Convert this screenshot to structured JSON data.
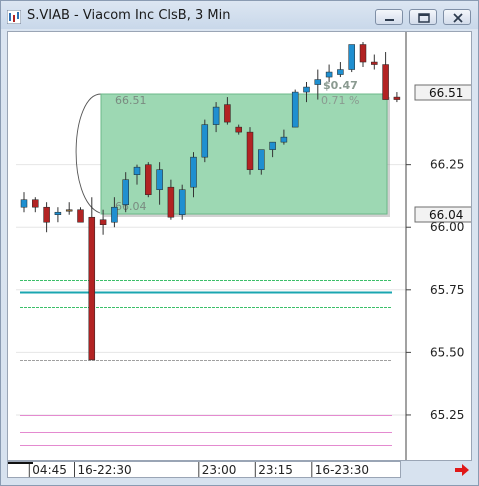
{
  "window": {
    "title": "S.VIAB - Viacom Inc ClsB, 3 Min",
    "controls": [
      "minimize",
      "restore",
      "close"
    ]
  },
  "overlay": {
    "upper_price": "66.51",
    "lower_price": "66.04",
    "change": "$0.47",
    "change_pct": "0.71 %",
    "fill_color": "#9dd8b3"
  },
  "price_badges": {
    "upper": "66.51",
    "lower": "66.04"
  },
  "chart_data": {
    "type": "candlestick",
    "title": "S.VIAB - Viacom Inc ClsB, 3 Min",
    "y_ticks": [
      "66.25",
      "66.00",
      "65.75",
      "65.50",
      "65.25"
    ],
    "y_tick_values": [
      66.25,
      66.0,
      65.75,
      65.5,
      65.25
    ],
    "ylim": [
      65.07,
      66.78
    ],
    "x_ticks": [
      "04:45",
      "16-22:30",
      "23:00",
      "23:15",
      "16-23:30"
    ],
    "x_tick_candle_index": [
      1,
      5,
      16,
      21,
      26
    ],
    "candles": [
      {
        "o": 66.08,
        "h": 66.14,
        "l": 66.06,
        "c": 66.11
      },
      {
        "o": 66.11,
        "h": 66.12,
        "l": 66.06,
        "c": 66.08
      },
      {
        "o": 66.08,
        "h": 66.1,
        "l": 65.98,
        "c": 66.02
      },
      {
        "o": 66.05,
        "h": 66.08,
        "l": 66.02,
        "c": 66.06
      },
      {
        "o": 66.07,
        "h": 66.1,
        "l": 66.05,
        "c": 66.07
      },
      {
        "o": 66.07,
        "h": 66.08,
        "l": 66.02,
        "c": 66.02
      },
      {
        "o": 66.04,
        "h": 66.12,
        "l": 65.47,
        "c": 65.47
      },
      {
        "o": 66.03,
        "h": 66.07,
        "l": 65.97,
        "c": 66.01
      },
      {
        "o": 66.02,
        "h": 66.12,
        "l": 66.0,
        "c": 66.08
      },
      {
        "o": 66.09,
        "h": 66.22,
        "l": 66.06,
        "c": 66.19
      },
      {
        "o": 66.21,
        "h": 66.25,
        "l": 66.17,
        "c": 66.24
      },
      {
        "o": 66.25,
        "h": 66.26,
        "l": 66.12,
        "c": 66.13
      },
      {
        "o": 66.15,
        "h": 66.26,
        "l": 66.09,
        "c": 66.23
      },
      {
        "o": 66.16,
        "h": 66.19,
        "l": 66.03,
        "c": 66.04
      },
      {
        "o": 66.05,
        "h": 66.17,
        "l": 66.03,
        "c": 66.15
      },
      {
        "o": 66.16,
        "h": 66.3,
        "l": 66.12,
        "c": 66.28
      },
      {
        "o": 66.28,
        "h": 66.43,
        "l": 66.26,
        "c": 66.41
      },
      {
        "o": 66.41,
        "h": 66.5,
        "l": 66.38,
        "c": 66.48
      },
      {
        "o": 66.49,
        "h": 66.52,
        "l": 66.41,
        "c": 66.42
      },
      {
        "o": 66.4,
        "h": 66.41,
        "l": 66.37,
        "c": 66.38
      },
      {
        "o": 66.38,
        "h": 66.4,
        "l": 66.21,
        "c": 66.23
      },
      {
        "o": 66.23,
        "h": 66.3,
        "l": 66.21,
        "c": 66.31
      },
      {
        "o": 66.31,
        "h": 66.34,
        "l": 66.28,
        "c": 66.34
      },
      {
        "o": 66.34,
        "h": 66.39,
        "l": 66.33,
        "c": 66.36
      },
      {
        "o": 66.4,
        "h": 66.55,
        "l": 66.4,
        "c": 66.54
      },
      {
        "o": 66.54,
        "h": 66.58,
        "l": 66.5,
        "c": 66.56
      },
      {
        "o": 66.57,
        "h": 66.63,
        "l": 66.51,
        "c": 66.59
      },
      {
        "o": 66.6,
        "h": 66.65,
        "l": 66.58,
        "c": 66.62
      },
      {
        "o": 66.61,
        "h": 66.66,
        "l": 66.6,
        "c": 66.63
      },
      {
        "o": 66.63,
        "h": 66.73,
        "l": 66.62,
        "c": 66.73
      },
      {
        "o": 66.73,
        "h": 66.74,
        "l": 66.64,
        "c": 66.66
      },
      {
        "o": 66.66,
        "h": 66.69,
        "l": 66.63,
        "c": 66.65
      },
      {
        "o": 66.65,
        "h": 66.7,
        "l": 66.51,
        "c": 66.51
      },
      {
        "o": 66.52,
        "h": 66.54,
        "l": 66.5,
        "c": 66.51
      }
    ],
    "reference_lines": [
      {
        "value": 65.79,
        "color": "#3cbf6a",
        "style": "dashed"
      },
      {
        "value": 65.74,
        "color": "#1aa6b0",
        "style": "solid"
      },
      {
        "value": 65.68,
        "color": "#3cbf6a",
        "style": "dashed"
      },
      {
        "value": 65.47,
        "color": "#a0a0a0",
        "style": "dashed"
      },
      {
        "value": 65.25,
        "color": "#e48ad0",
        "style": "solid"
      },
      {
        "value": 65.18,
        "color": "#e48ad0",
        "style": "solid"
      },
      {
        "value": 65.13,
        "color": "#e48ad0",
        "style": "solid"
      }
    ],
    "colors": {
      "up": "#1f8fd0",
      "down": "#b22323",
      "neutral": "#8a6a3a"
    },
    "grid": true
  }
}
